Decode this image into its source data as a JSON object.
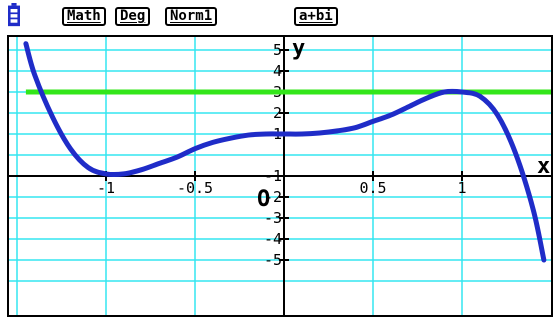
{
  "status_bar": {
    "battery_icon": "battery-icon",
    "input_mode": "Math",
    "angle_unit": "Deg",
    "display_format": "Norm1",
    "complex_mode": "a+bi"
  },
  "graph": {
    "x_axis_label": "x",
    "y_axis_label": "y",
    "origin_label": "O",
    "x_tick_labels": [
      "-1",
      "-0.5",
      "0.5",
      "1"
    ],
    "y_tick_labels": [
      "5",
      "4",
      "3",
      "2",
      "1",
      "-1",
      "-2",
      "-3",
      "-4",
      "-5"
    ],
    "curve_color": "#1f2cc8",
    "horizontal_line_color": "#33e61a",
    "grid_color": "#33e6f0",
    "axis_color": "#000000"
  },
  "chart_data": {
    "type": "line",
    "xlim": [
      -1.45,
      1.5
    ],
    "ylim": [
      -5.8,
      6.0
    ],
    "grid": true,
    "series": [
      {
        "x": [
          -1.45,
          -1.4,
          -1.3,
          -1.2,
          -1.1,
          -1.0,
          -0.9,
          -0.8,
          -0.7,
          -0.6,
          -0.5,
          -0.4,
          -0.3,
          -0.2,
          -0.1,
          0.0,
          0.1,
          0.2,
          0.3,
          0.4,
          0.5,
          0.6,
          0.7,
          0.8,
          0.9,
          1.0,
          1.1,
          1.2,
          1.3,
          1.4,
          1.46
        ],
        "y": [
          5.3,
          3.8,
          1.8,
          0.3,
          -0.6,
          -0.9,
          -0.9,
          -0.7,
          -0.4,
          -0.1,
          0.3,
          0.6,
          0.8,
          0.95,
          1.0,
          1.0,
          1.0,
          1.05,
          1.15,
          1.3,
          1.6,
          1.9,
          2.3,
          2.7,
          3.0,
          3.0,
          2.8,
          1.9,
          0.1,
          -2.6,
          -5.0
        ]
      },
      {
        "x": [
          -1.45,
          1.5
        ],
        "y": [
          3,
          3
        ]
      }
    ]
  }
}
